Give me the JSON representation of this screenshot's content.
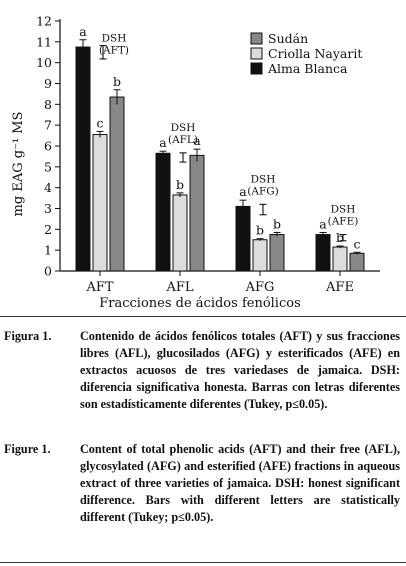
{
  "chart_data": {
    "type": "bar",
    "categories": [
      "AFT",
      "AFL",
      "AFG",
      "AFE"
    ],
    "xlabel": "Fracciones de ácidos fenólicos",
    "ylabel": "mg EAG g⁻¹ MS",
    "ylim": [
      0,
      12
    ],
    "yticks": [
      0,
      1,
      2,
      3,
      4,
      5,
      6,
      7,
      8,
      9,
      10,
      11,
      12
    ],
    "legend_position": "top-right",
    "series": [
      {
        "name": "Alma Blanca",
        "color": "#111111",
        "values": [
          10.75,
          5.65,
          3.1,
          1.75
        ],
        "errors": [
          0.35,
          0.1,
          0.3,
          0.1
        ],
        "letters": [
          "a",
          "a",
          "a",
          "a"
        ]
      },
      {
        "name": "Criolla Nayarit",
        "color": "#dddddd",
        "values": [
          6.55,
          3.65,
          1.5,
          1.15
        ],
        "errors": [
          0.15,
          0.1,
          0.05,
          0.05
        ],
        "letters": [
          "c",
          "b",
          "b",
          "b"
        ]
      },
      {
        "name": "Sudán",
        "color": "#888888",
        "values": [
          8.35,
          5.55,
          1.75,
          0.85
        ],
        "errors": [
          0.35,
          0.3,
          0.1,
          0.05
        ],
        "letters": [
          "b",
          "a",
          "b",
          "c"
        ]
      }
    ],
    "legend_order": [
      "Sudán",
      "Criolla Nayarit",
      "Alma Blanca"
    ],
    "dsh": [
      {
        "label": "DSH",
        "sub": "(AFT)",
        "half_range": 0.32,
        "center": 10.5
      },
      {
        "label": "DSH",
        "sub": "(AFL)",
        "half_range": 0.22,
        "center": 5.45
      },
      {
        "label": "DSH",
        "sub": "(AFG)",
        "half_range": 0.25,
        "center": 2.95
      },
      {
        "label": "DSH",
        "sub": "(AFE)",
        "half_range": 0.15,
        "center": 1.6
      }
    ]
  },
  "captions": [
    {
      "label": "Figura 1.",
      "text": "Contenido de ácidos fenólicos totales (AFT) y sus fracciones libres (AFL), glucosilados (AFG) y esterificados (AFE) en extractos acuosos de tres variedases de jamaica. DSH: diferencia significativa honesta. Barras con letras diferentes son estadísticamente diferentes (Tukey, p≤0.05)."
    },
    {
      "label": "Figure 1.",
      "text": "Content of total phenolic acids (AFT) and their free (AFL), glycosylated (AFG) and esterified (AFE) fractions in aqueous extract of three varieties of jamaica. DSH: honest significant difference. Bars with different letters are statistically different (Tukey; p≤0.05)."
    }
  ]
}
